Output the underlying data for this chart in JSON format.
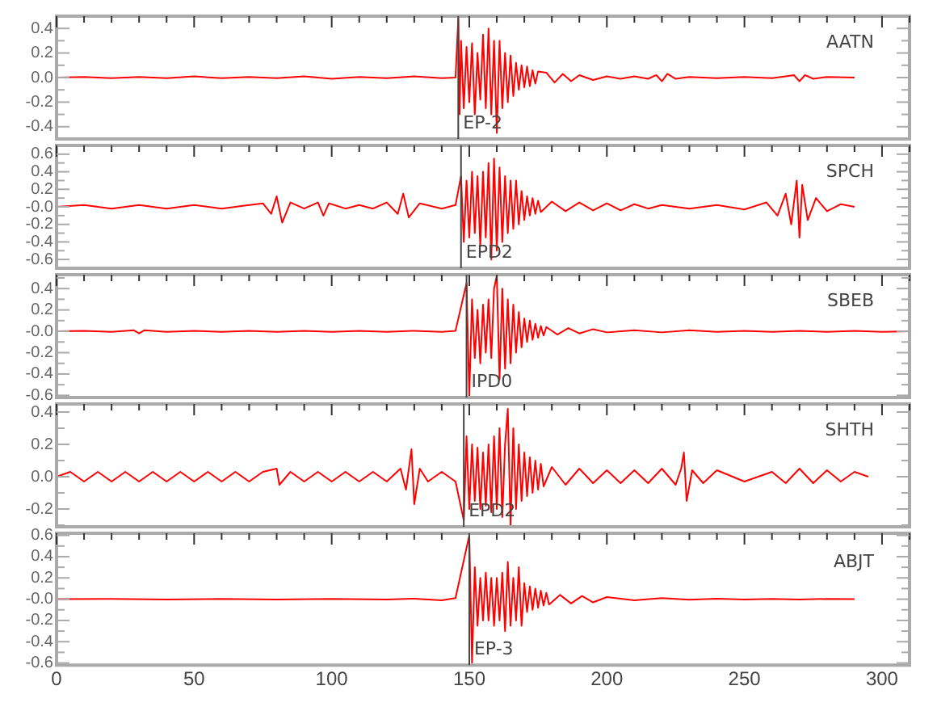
{
  "chart_data": [
    {
      "type": "line",
      "marker": "none",
      "tick_labels": "y",
      "xlim": [
        0,
        310
      ],
      "ylim": [
        -0.5,
        0.5
      ],
      "xticks": [
        0,
        {
          "value": 10,
          "label": null
        },
        {
          "value": 20,
          "label": null
        },
        {
          "value": 30,
          "label": null
        },
        {
          "value": 40,
          "label": null
        },
        50,
        {
          "value": 60,
          "label": null
        },
        {
          "value": 70,
          "label": null
        },
        {
          "value": 80,
          "label": null
        },
        {
          "value": 90,
          "label": null
        },
        100,
        {
          "value": 110,
          "label": null
        },
        {
          "value": 120,
          "label": null
        },
        {
          "value": 130,
          "label": null
        },
        {
          "value": 140,
          "label": null
        },
        150,
        {
          "value": 160,
          "label": null
        },
        {
          "value": 170,
          "label": null
        },
        {
          "value": 180,
          "label": null
        },
        {
          "value": 190,
          "label": null
        },
        200,
        {
          "value": 210,
          "label": null
        },
        {
          "value": 220,
          "label": null
        },
        {
          "value": 230,
          "label": null
        },
        {
          "value": 240,
          "label": null
        },
        250,
        {
          "value": 260,
          "label": null
        },
        {
          "value": 270,
          "label": null
        },
        {
          "value": 280,
          "label": null
        },
        {
          "value": 290,
          "label": null
        },
        300,
        {
          "value": 310,
          "label": null
        }
      ],
      "yticks": [
        -0.4,
        {
          "value": -0.3,
          "label": null
        },
        -0.2,
        {
          "value": -0.1,
          "label": null
        },
        {
          "value": 0,
          "label": "0.0"
        },
        {
          "value": 0.1,
          "label": null
        },
        0.2,
        {
          "value": 0.3,
          "label": null
        },
        0.4
      ],
      "x": [
        0,
        10,
        20,
        30,
        40,
        50,
        60,
        70,
        80,
        90,
        100,
        110,
        120,
        130,
        140,
        145,
        146,
        146.5,
        147,
        148,
        149,
        150,
        151,
        152,
        153,
        154,
        155,
        156,
        157,
        158,
        159,
        160,
        161,
        162,
        163,
        164,
        165,
        166,
        167,
        168,
        169,
        170,
        171,
        172,
        173,
        174,
        175,
        178,
        181,
        184,
        187,
        190,
        195,
        200,
        205,
        210,
        215,
        218,
        220,
        222,
        225,
        230,
        240,
        250,
        260,
        265,
        268,
        270,
        272,
        275,
        280,
        290
      ],
      "series": [
        {
          "name": "AATN",
          "color": "#ff0000",
          "values": [
            0,
            0.005,
            -0.005,
            0.005,
            -0.005,
            0.01,
            -0.005,
            0.005,
            -0.005,
            0.01,
            -0.01,
            0.005,
            -0.005,
            0.01,
            -0.005,
            0,
            0.48,
            -0.3,
            0.3,
            -0.25,
            0.25,
            -0.2,
            0.28,
            -0.3,
            0.2,
            -0.18,
            0.35,
            -0.25,
            0.4,
            -0.3,
            0.3,
            -0.45,
            0.3,
            -0.25,
            0.2,
            -0.2,
            0.18,
            -0.15,
            0.12,
            -0.1,
            0.1,
            -0.08,
            0.09,
            -0.07,
            0.06,
            -0.05,
            0.05,
            0.04,
            -0.04,
            0.03,
            -0.03,
            0.02,
            -0.02,
            0.01,
            -0.01,
            0.01,
            -0.01,
            0.02,
            -0.03,
            0.03,
            -0.01,
            0.005,
            -0.005,
            0.005,
            -0.005,
            0.01,
            0.02,
            -0.03,
            0.02,
            -0.01,
            0.005,
            0
          ]
        }
      ],
      "ref_lines": [
        {
          "axis": "x",
          "value": 146,
          "label": "EP-2"
        }
      ]
    },
    {
      "type": "line",
      "marker": "none",
      "tick_labels": "y",
      "xlim": [
        0,
        310
      ],
      "ylim": [
        -0.7,
        0.7
      ],
      "xticks": [
        0,
        {
          "value": 10,
          "label": null
        },
        {
          "value": 20,
          "label": null
        },
        {
          "value": 30,
          "label": null
        },
        {
          "value": 40,
          "label": null
        },
        50,
        {
          "value": 60,
          "label": null
        },
        {
          "value": 70,
          "label": null
        },
        {
          "value": 80,
          "label": null
        },
        {
          "value": 90,
          "label": null
        },
        100,
        {
          "value": 110,
          "label": null
        },
        {
          "value": 120,
          "label": null
        },
        {
          "value": 130,
          "label": null
        },
        {
          "value": 140,
          "label": null
        },
        150,
        {
          "value": 160,
          "label": null
        },
        {
          "value": 170,
          "label": null
        },
        {
          "value": 180,
          "label": null
        },
        {
          "value": 190,
          "label": null
        },
        200,
        {
          "value": 210,
          "label": null
        },
        {
          "value": 220,
          "label": null
        },
        {
          "value": 230,
          "label": null
        },
        {
          "value": 240,
          "label": null
        },
        250,
        {
          "value": 260,
          "label": null
        },
        {
          "value": 270,
          "label": null
        },
        {
          "value": 280,
          "label": null
        },
        {
          "value": 290,
          "label": null
        },
        300,
        {
          "value": 310,
          "label": null
        }
      ],
      "yticks": [
        -0.6,
        {
          "value": -0.5,
          "label": null
        },
        -0.4,
        {
          "value": -0.3,
          "label": null
        },
        -0.2,
        {
          "value": -0.1,
          "label": null
        },
        {
          "value": 0,
          "label": "-0.0"
        },
        {
          "value": 0.1,
          "label": null
        },
        0.2,
        {
          "value": 0.3,
          "label": null
        },
        0.4,
        {
          "value": 0.5,
          "label": null
        },
        0.6
      ],
      "x": [
        0,
        10,
        20,
        30,
        40,
        50,
        60,
        70,
        75,
        78,
        80,
        82,
        85,
        90,
        95,
        97,
        99,
        105,
        110,
        115,
        120,
        124,
        126,
        128,
        132,
        140,
        145,
        147,
        148,
        149,
        150,
        151,
        152,
        153,
        154,
        155,
        156,
        157,
        158,
        159,
        160,
        161,
        162,
        163,
        164,
        165,
        166,
        167,
        168,
        169,
        170,
        171,
        172,
        173,
        174,
        175,
        176,
        180,
        185,
        190,
        195,
        200,
        205,
        210,
        215,
        220,
        230,
        240,
        250,
        258,
        262,
        265,
        267,
        269,
        270,
        271,
        273,
        276,
        280,
        285,
        290
      ],
      "series": [
        {
          "name": "SPCH",
          "color": "#ff0000",
          "values": [
            0,
            0.02,
            -0.02,
            0.02,
            -0.02,
            0.02,
            -0.02,
            0.02,
            0.04,
            -0.08,
            0.12,
            -0.18,
            0.05,
            -0.02,
            0.05,
            -0.1,
            0.04,
            -0.02,
            0.02,
            -0.02,
            0.05,
            -0.08,
            0.15,
            -0.12,
            0.04,
            -0.02,
            0.02,
            0.35,
            -0.4,
            0.3,
            -0.35,
            0.4,
            -0.3,
            0.35,
            -0.45,
            0.4,
            -0.35,
            0.5,
            -0.6,
            0.55,
            -0.5,
            0.45,
            -0.4,
            0.35,
            -0.3,
            0.3,
            -0.25,
            0.3,
            -0.2,
            0.18,
            -0.15,
            0.12,
            -0.1,
            0.1,
            -0.08,
            0.07,
            -0.06,
            0.06,
            -0.05,
            0.05,
            -0.04,
            0.04,
            -0.04,
            0.03,
            -0.02,
            0.02,
            -0.02,
            0.02,
            -0.03,
            0.05,
            -0.1,
            0.15,
            -0.2,
            0.3,
            -0.35,
            0.25,
            -0.15,
            0.1,
            -0.05,
            0.03,
            0
          ]
        }
      ],
      "ref_lines": [
        {
          "axis": "x",
          "value": 147,
          "label": "EPD2"
        }
      ]
    },
    {
      "type": "line",
      "marker": "none",
      "tick_labels": "y",
      "xlim": [
        0,
        310
      ],
      "ylim": [
        -0.62,
        0.53
      ],
      "xticks": [
        0,
        {
          "value": 10,
          "label": null
        },
        {
          "value": 20,
          "label": null
        },
        {
          "value": 30,
          "label": null
        },
        {
          "value": 40,
          "label": null
        },
        50,
        {
          "value": 60,
          "label": null
        },
        {
          "value": 70,
          "label": null
        },
        {
          "value": 80,
          "label": null
        },
        {
          "value": 90,
          "label": null
        },
        100,
        {
          "value": 110,
          "label": null
        },
        {
          "value": 120,
          "label": null
        },
        {
          "value": 130,
          "label": null
        },
        {
          "value": 140,
          "label": null
        },
        150,
        {
          "value": 160,
          "label": null
        },
        {
          "value": 170,
          "label": null
        },
        {
          "value": 180,
          "label": null
        },
        {
          "value": 190,
          "label": null
        },
        200,
        {
          "value": 210,
          "label": null
        },
        {
          "value": 220,
          "label": null
        },
        {
          "value": 230,
          "label": null
        },
        {
          "value": 240,
          "label": null
        },
        250,
        {
          "value": 260,
          "label": null
        },
        {
          "value": 270,
          "label": null
        },
        {
          "value": 280,
          "label": null
        },
        {
          "value": 290,
          "label": null
        },
        300,
        {
          "value": 310,
          "label": null
        }
      ],
      "yticks": [
        -0.6,
        {
          "value": -0.5,
          "label": null
        },
        -0.4,
        {
          "value": -0.3,
          "label": null
        },
        -0.2,
        {
          "value": -0.1,
          "label": null
        },
        {
          "value": 0,
          "label": "-0.0"
        },
        {
          "value": 0.1,
          "label": null
        },
        0.2,
        {
          "value": 0.3,
          "label": null
        },
        0.4,
        {
          "value": 0.5,
          "label": null
        }
      ],
      "x": [
        0,
        10,
        20,
        28,
        30,
        32,
        40,
        50,
        60,
        70,
        80,
        90,
        100,
        110,
        120,
        130,
        140,
        145,
        149,
        150,
        151,
        152,
        153,
        154,
        155,
        156,
        157,
        158,
        159,
        160,
        161,
        162,
        163,
        164,
        165,
        166,
        167,
        168,
        169,
        170,
        171,
        172,
        173,
        174,
        175,
        176,
        177,
        178,
        182,
        186,
        190,
        195,
        200,
        210,
        220,
        230,
        240,
        250,
        260,
        270,
        280,
        290,
        300,
        310
      ],
      "series": [
        {
          "name": "SBEB",
          "color": "#ff0000",
          "values": [
            0,
            0.005,
            -0.005,
            0.01,
            -0.02,
            0.01,
            -0.005,
            0.005,
            -0.005,
            0.005,
            -0.005,
            0.005,
            -0.005,
            0.005,
            -0.005,
            0.005,
            -0.005,
            0.005,
            0.45,
            -0.6,
            0.3,
            -0.25,
            0.2,
            -0.3,
            0.25,
            -0.2,
            0.3,
            -0.25,
            0.4,
            0.52,
            -0.45,
            0.4,
            -0.35,
            0.3,
            -0.3,
            0.25,
            -0.2,
            0.18,
            -0.15,
            0.12,
            -0.1,
            0.1,
            -0.08,
            0.07,
            -0.06,
            0.05,
            -0.04,
            0.04,
            -0.03,
            0.03,
            -0.02,
            0.02,
            -0.01,
            0.01,
            -0.01,
            0.01,
            -0.005,
            0.005,
            -0.005,
            0.005,
            -0.005,
            0.005,
            -0.005,
            0
          ]
        }
      ],
      "ref_lines": [
        {
          "axis": "x",
          "value": 149,
          "label": "IPD0"
        }
      ]
    },
    {
      "type": "line",
      "marker": "none",
      "tick_labels": "y",
      "xlim": [
        0,
        310
      ],
      "ylim": [
        -0.31,
        0.45
      ],
      "xticks": [
        0,
        {
          "value": 10,
          "label": null
        },
        {
          "value": 20,
          "label": null
        },
        {
          "value": 30,
          "label": null
        },
        {
          "value": 40,
          "label": null
        },
        50,
        {
          "value": 60,
          "label": null
        },
        {
          "value": 70,
          "label": null
        },
        {
          "value": 80,
          "label": null
        },
        {
          "value": 90,
          "label": null
        },
        100,
        {
          "value": 110,
          "label": null
        },
        {
          "value": 120,
          "label": null
        },
        {
          "value": 130,
          "label": null
        },
        {
          "value": 140,
          "label": null
        },
        150,
        {
          "value": 160,
          "label": null
        },
        {
          "value": 170,
          "label": null
        },
        {
          "value": 180,
          "label": null
        },
        {
          "value": 190,
          "label": null
        },
        200,
        {
          "value": 210,
          "label": null
        },
        {
          "value": 220,
          "label": null
        },
        {
          "value": 230,
          "label": null
        },
        {
          "value": 240,
          "label": null
        },
        250,
        {
          "value": 260,
          "label": null
        },
        {
          "value": 270,
          "label": null
        },
        {
          "value": 280,
          "label": null
        },
        {
          "value": 290,
          "label": null
        },
        300,
        {
          "value": 310,
          "label": null
        }
      ],
      "yticks": [
        {
          "value": -0.3,
          "label": null
        },
        -0.2,
        {
          "value": -0.1,
          "label": null
        },
        {
          "value": 0,
          "label": "0.0"
        },
        {
          "value": 0.1,
          "label": null
        },
        0.2,
        {
          "value": 0.3,
          "label": null
        },
        0.4
      ],
      "x": [
        0,
        5,
        10,
        15,
        20,
        25,
        30,
        35,
        40,
        45,
        50,
        55,
        60,
        65,
        70,
        75,
        80,
        81,
        85,
        90,
        95,
        100,
        105,
        110,
        115,
        120,
        125,
        127,
        129,
        130,
        132,
        135,
        140,
        145,
        148,
        149,
        150,
        151,
        152,
        153,
        154,
        155,
        156,
        157,
        158,
        159,
        160,
        161,
        162,
        163,
        164,
        165,
        166,
        167,
        168,
        169,
        170,
        171,
        172,
        173,
        174,
        175,
        176,
        177,
        180,
        185,
        190,
        195,
        200,
        205,
        210,
        215,
        220,
        225,
        227,
        228,
        229,
        231,
        235,
        240,
        250,
        260,
        265,
        270,
        275,
        280,
        285,
        290,
        295
      ],
      "series": [
        {
          "name": "SHTH",
          "color": "#ff0000",
          "values": [
            0,
            0.03,
            -0.03,
            0.03,
            -0.03,
            0.03,
            -0.03,
            0.03,
            -0.03,
            0.03,
            -0.03,
            0.03,
            -0.03,
            0.03,
            -0.03,
            0.03,
            0.05,
            -0.05,
            0.03,
            -0.03,
            0.03,
            -0.03,
            0.03,
            -0.03,
            0.03,
            -0.03,
            0.05,
            -0.08,
            0.17,
            -0.17,
            0.05,
            -0.03,
            0.03,
            -0.03,
            -0.27,
            0.25,
            -0.2,
            0.2,
            -0.15,
            0.18,
            -0.2,
            0.15,
            -0.18,
            0.2,
            -0.22,
            0.25,
            -0.2,
            0.3,
            -0.25,
            0.2,
            0.42,
            -0.3,
            0.3,
            -0.2,
            0.2,
            -0.15,
            0.15,
            -0.12,
            0.12,
            -0.1,
            0.1,
            -0.08,
            0.08,
            -0.06,
            0.06,
            -0.05,
            0.05,
            -0.04,
            0.04,
            -0.04,
            0.04,
            -0.04,
            0.05,
            -0.05,
            0.05,
            0.15,
            -0.15,
            0.04,
            -0.04,
            0.04,
            -0.03,
            0.03,
            -0.04,
            0.05,
            -0.04,
            0.04,
            -0.03,
            0.03,
            0
          ]
        }
      ],
      "ref_lines": [
        {
          "axis": "x",
          "value": 148,
          "label": "EPD2"
        }
      ]
    },
    {
      "type": "line",
      "marker": "none",
      "xlim": [
        0,
        310
      ],
      "ylim": [
        -0.62,
        0.62
      ],
      "xticks": [
        0,
        {
          "value": 10,
          "label": null
        },
        {
          "value": 20,
          "label": null
        },
        {
          "value": 30,
          "label": null
        },
        {
          "value": 40,
          "label": null
        },
        50,
        {
          "value": 60,
          "label": null
        },
        {
          "value": 70,
          "label": null
        },
        {
          "value": 80,
          "label": null
        },
        {
          "value": 90,
          "label": null
        },
        100,
        {
          "value": 110,
          "label": null
        },
        {
          "value": 120,
          "label": null
        },
        {
          "value": 130,
          "label": null
        },
        {
          "value": 140,
          "label": null
        },
        150,
        {
          "value": 160,
          "label": null
        },
        {
          "value": 170,
          "label": null
        },
        {
          "value": 180,
          "label": null
        },
        {
          "value": 190,
          "label": null
        },
        200,
        {
          "value": 210,
          "label": null
        },
        {
          "value": 220,
          "label": null
        },
        {
          "value": 230,
          "label": null
        },
        {
          "value": 240,
          "label": null
        },
        250,
        {
          "value": 260,
          "label": null
        },
        {
          "value": 270,
          "label": null
        },
        {
          "value": 280,
          "label": null
        },
        {
          "value": 290,
          "label": null
        },
        300,
        {
          "value": 310,
          "label": null
        }
      ],
      "yticks": [
        -0.6,
        {
          "value": -0.5,
          "label": null
        },
        -0.4,
        {
          "value": -0.3,
          "label": null
        },
        -0.2,
        {
          "value": -0.1,
          "label": null
        },
        {
          "value": 0,
          "label": "-0.0"
        },
        {
          "value": 0.1,
          "label": null
        },
        0.2,
        {
          "value": 0.3,
          "label": null
        },
        0.4,
        {
          "value": 0.5,
          "label": null
        },
        0.6
      ],
      "x": [
        0,
        20,
        40,
        60,
        80,
        100,
        120,
        130,
        140,
        145,
        150,
        151,
        152,
        153,
        154,
        155,
        156,
        157,
        158,
        159,
        160,
        161,
        162,
        163,
        164,
        165,
        166,
        167,
        168,
        169,
        170,
        171,
        172,
        173,
        174,
        175,
        176,
        177,
        178,
        179,
        183,
        187,
        191,
        195,
        200,
        210,
        220,
        230,
        240,
        250,
        260,
        270,
        280,
        290
      ],
      "series": [
        {
          "name": "ABJT",
          "color": "#ff0000",
          "values": [
            0,
            0.003,
            -0.003,
            0.003,
            -0.003,
            0.003,
            -0.003,
            0.005,
            -0.01,
            0.01,
            0.6,
            -0.6,
            0.3,
            -0.25,
            0.2,
            -0.2,
            0.25,
            -0.2,
            0.2,
            -0.25,
            0.2,
            -0.2,
            0.25,
            -0.3,
            0.35,
            -0.25,
            0.2,
            -0.2,
            0.3,
            -0.25,
            0.15,
            -0.12,
            0.12,
            -0.1,
            0.1,
            -0.08,
            0.08,
            -0.06,
            0.06,
            -0.05,
            0.04,
            -0.04,
            0.03,
            -0.03,
            0.02,
            -0.01,
            0.01,
            -0.005,
            0.005,
            -0.003,
            0.003,
            -0.003,
            0.003,
            0
          ]
        }
      ],
      "ref_lines": [
        {
          "axis": "x",
          "value": 150,
          "label": "EP-3"
        }
      ]
    }
  ]
}
